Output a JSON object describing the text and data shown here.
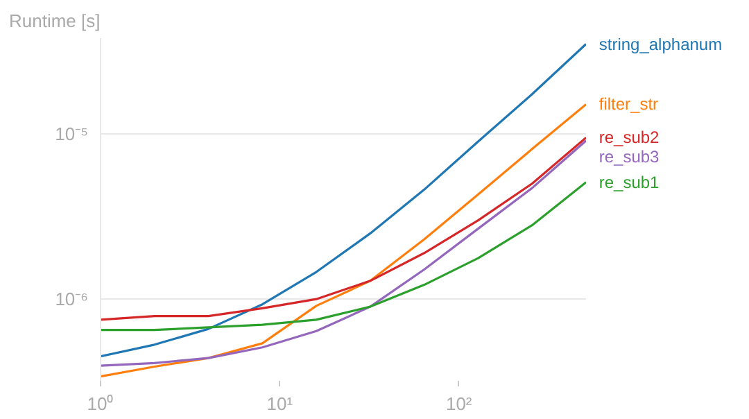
{
  "chart_data": {
    "type": "line",
    "ylabel": "Runtime [s]",
    "log": "xy",
    "grid": "y",
    "x": [
      1,
      2,
      4,
      8,
      16,
      32,
      64,
      128,
      256,
      512
    ],
    "xlim": [
      1,
      512
    ],
    "xticks": [
      {
        "value": 1,
        "label": "10⁰"
      },
      {
        "value": 10,
        "label": "10¹"
      },
      {
        "value": 100,
        "label": "10²"
      }
    ],
    "ylim": [
      3.2e-07,
      3.8e-05
    ],
    "yticks": [
      {
        "value": 1e-06,
        "label": "10⁻⁶"
      },
      {
        "value": 1e-05,
        "label": "10⁻⁵"
      }
    ],
    "series": [
      {
        "name": "string_alphanum",
        "color": "#1f77b4",
        "values": [
          4.5e-07,
          5.3e-07,
          6.6e-07,
          9.3e-07,
          1.46e-06,
          2.5e-06,
          4.6e-06,
          9e-06,
          1.74e-05,
          3.5e-05
        ]
      },
      {
        "name": "filter_str",
        "color": "#ff7f0e",
        "values": [
          3.4e-07,
          3.9e-07,
          4.4e-07,
          5.4e-07,
          9.1e-07,
          1.29e-06,
          2.3e-06,
          4.3e-06,
          8.1e-06,
          1.51e-05
        ]
      },
      {
        "name": "re_sub2",
        "color": "#d62728",
        "values": [
          7.5e-07,
          7.9e-07,
          7.9e-07,
          8.8e-07,
          1e-06,
          1.29e-06,
          1.9e-06,
          3e-06,
          5e-06,
          9.5e-06
        ]
      },
      {
        "name": "re_sub3",
        "color": "#9467bd",
        "values": [
          3.95e-07,
          4.1e-07,
          4.4e-07,
          5.1e-07,
          6.4e-07,
          9e-07,
          1.51e-06,
          2.67e-06,
          4.7e-06,
          9.1e-06
        ]
      },
      {
        "name": "re_sub1",
        "color": "#2ca02c",
        "values": [
          6.5e-07,
          6.5e-07,
          6.75e-07,
          7e-07,
          7.5e-07,
          9e-07,
          1.22e-06,
          1.77e-06,
          2.8e-06,
          5.1e-06
        ]
      }
    ]
  }
}
